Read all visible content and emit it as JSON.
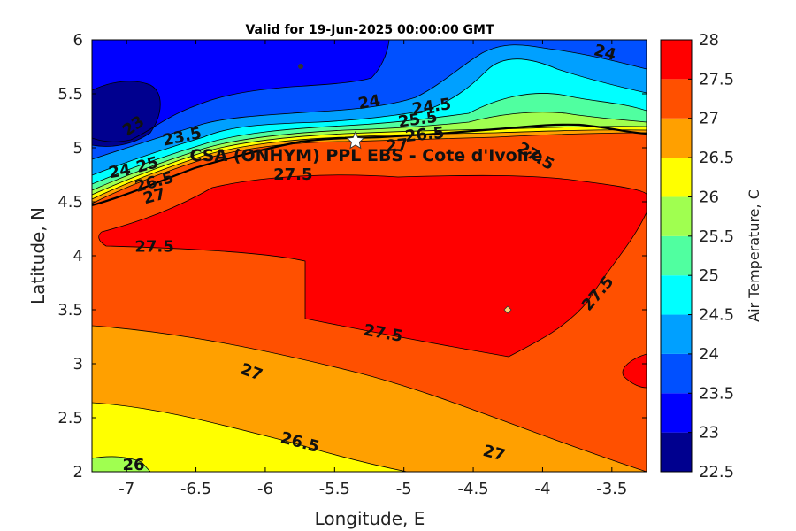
{
  "chart_data": {
    "type": "heatmap",
    "title": "Valid for 19-Jun-2025 00:00:00 GMT",
    "xlabel": "Longitude, E",
    "ylabel": "Latitude, N",
    "colorbar_label": "Air Temperature, C",
    "xlim": [
      -7.25,
      -3.25
    ],
    "ylim": [
      2,
      6
    ],
    "x_ticks": [
      -7,
      -6.5,
      -6,
      -5.5,
      -5,
      -4.5,
      -4,
      -3.5
    ],
    "y_ticks": [
      2,
      2.5,
      3,
      3.5,
      4,
      4.5,
      5,
      5.5,
      6
    ],
    "colorbar_ticks": [
      22.5,
      23,
      23.5,
      24,
      24.5,
      25,
      25.5,
      26,
      26.5,
      27,
      27.5,
      28
    ],
    "levels": [
      {
        "min": 22.5,
        "max": 23.0,
        "color": "#00008f"
      },
      {
        "min": 23.0,
        "max": 23.5,
        "color": "#0000ff"
      },
      {
        "min": 23.5,
        "max": 24.0,
        "color": "#0050ff"
      },
      {
        "min": 24.0,
        "max": 24.5,
        "color": "#00a0ff"
      },
      {
        "min": 24.5,
        "max": 25.0,
        "color": "#00ffff"
      },
      {
        "min": 25.0,
        "max": 25.5,
        "color": "#50ffa0"
      },
      {
        "min": 25.5,
        "max": 26.0,
        "color": "#a0ff50"
      },
      {
        "min": 26.0,
        "max": 26.5,
        "color": "#ffff00"
      },
      {
        "min": 26.5,
        "max": 27.0,
        "color": "#ffa000"
      },
      {
        "min": 27.0,
        "max": 27.5,
        "color": "#ff5000"
      },
      {
        "min": 27.5,
        "max": 28.0,
        "color": "#ff0000"
      }
    ],
    "contour_labels": [
      {
        "text": "24",
        "lon": -3.55,
        "lat": 5.88,
        "rot": 15
      },
      {
        "text": "23",
        "lon": -6.95,
        "lat": 5.2,
        "rot": -35
      },
      {
        "text": "23.5",
        "lon": -6.6,
        "lat": 5.1,
        "rot": -12
      },
      {
        "text": "24",
        "lon": -5.25,
        "lat": 5.42,
        "rot": -10
      },
      {
        "text": "24.5",
        "lon": -4.8,
        "lat": 5.38,
        "rot": -8
      },
      {
        "text": "25.5",
        "lon": -4.9,
        "lat": 5.26,
        "rot": -8
      },
      {
        "text": "26.5",
        "lon": -4.85,
        "lat": 5.12,
        "rot": -6
      },
      {
        "text": "27",
        "lon": -5.05,
        "lat": 5.02,
        "rot": -5
      },
      {
        "text": "24",
        "lon": -7.05,
        "lat": 4.78,
        "rot": -10
      },
      {
        "text": "25",
        "lon": -6.85,
        "lat": 4.84,
        "rot": -15
      },
      {
        "text": "26.5",
        "lon": -6.8,
        "lat": 4.68,
        "rot": -15
      },
      {
        "text": "27",
        "lon": -6.8,
        "lat": 4.55,
        "rot": -15
      },
      {
        "text": "27.5",
        "lon": -5.8,
        "lat": 4.75,
        "rot": 0
      },
      {
        "text": "27.5",
        "lon": -4.05,
        "lat": 4.92,
        "rot": 30
      },
      {
        "text": "27.5",
        "lon": -6.8,
        "lat": 4.08,
        "rot": 0
      },
      {
        "text": "27.5",
        "lon": -3.6,
        "lat": 3.65,
        "rot": -50
      },
      {
        "text": "27.5",
        "lon": -5.15,
        "lat": 3.28,
        "rot": 10
      },
      {
        "text": "27",
        "lon": -6.1,
        "lat": 2.92,
        "rot": 20
      },
      {
        "text": "26.5",
        "lon": -5.75,
        "lat": 2.27,
        "rot": 15
      },
      {
        "text": "27",
        "lon": -4.35,
        "lat": 2.17,
        "rot": 15
      },
      {
        "text": "26",
        "lon": -6.95,
        "lat": 2.06,
        "rot": 0
      }
    ],
    "station": {
      "label": "CSA (ONHYM) PPL EBS - Cote d'Ivoire",
      "lon": -5.35,
      "lat": 5.05
    }
  },
  "colors": {
    "coastline": "#000000",
    "station_marker": "#ffffff"
  }
}
